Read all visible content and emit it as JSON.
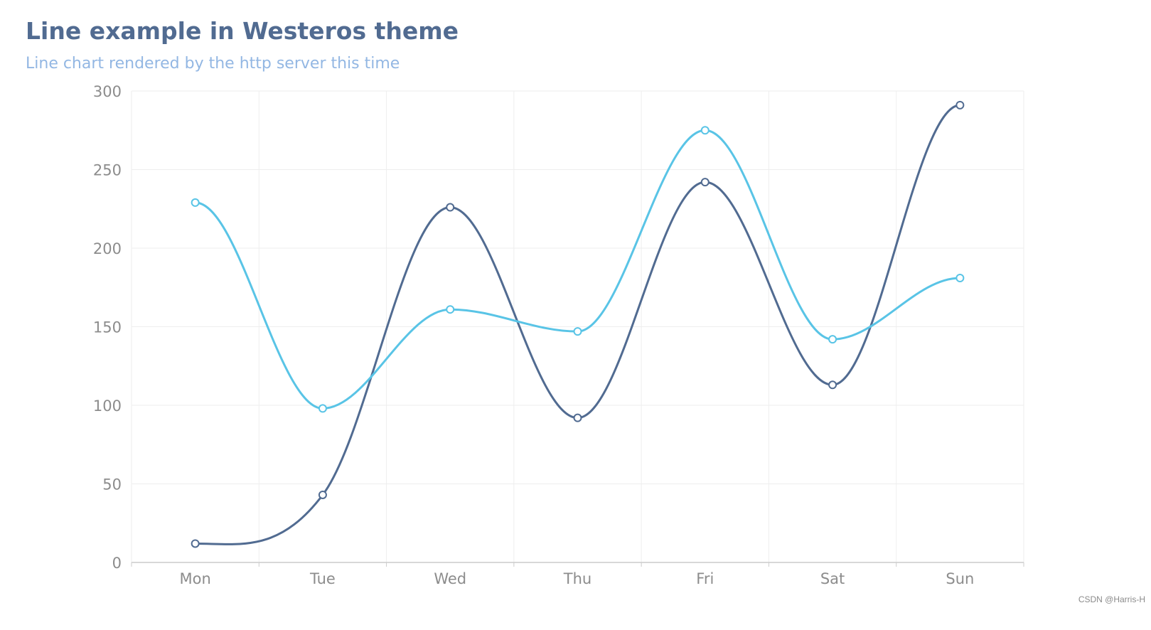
{
  "chart_data": {
    "type": "line",
    "title": "Line example in Westeros theme",
    "subtitle": "Line chart rendered by the http server this time",
    "categories": [
      "Mon",
      "Tue",
      "Wed",
      "Thu",
      "Fri",
      "Sat",
      "Sun"
    ],
    "y_ticks": [
      0,
      50,
      100,
      150,
      200,
      250,
      300
    ],
    "ylim": [
      0,
      300
    ],
    "grid": true,
    "smooth": true,
    "legend": "none",
    "series": [
      {
        "values": [
          12,
          43,
          226,
          92,
          242,
          113,
          291
        ],
        "color": "#516b91"
      },
      {
        "values": [
          229,
          98,
          161,
          147,
          275,
          142,
          181
        ],
        "color": "#59c4e6"
      }
    ]
  },
  "watermark": "CSDN @Harris-H"
}
